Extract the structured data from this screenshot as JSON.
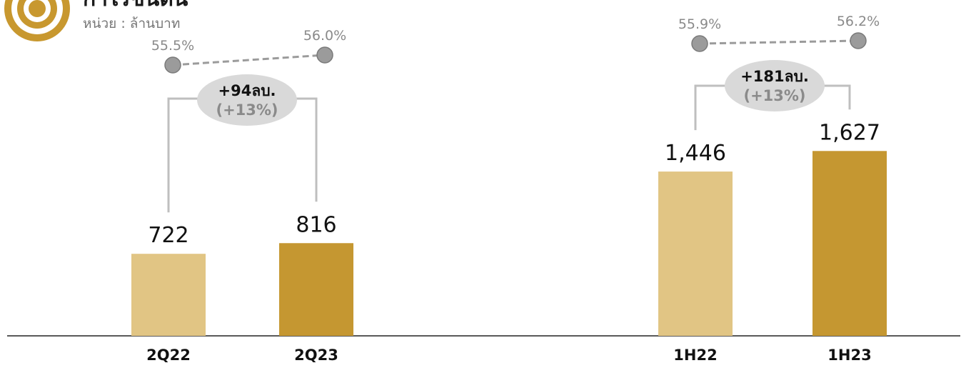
{
  "header": {
    "title": "กำไรขั้นต้น",
    "unit": "หน่วย : ล้านบาท"
  },
  "colors": {
    "prior": "#e1c584",
    "current": "#c59731",
    "margin_marker": "#9b9b9b",
    "bubble": "#d9d9d9",
    "bracket": "#bfbfbf",
    "logo": "#c8982f"
  },
  "chart_data": [
    {
      "type": "bar",
      "categories": [
        "2Q22",
        "2Q23"
      ],
      "values": [
        722,
        816
      ],
      "value_labels": [
        "722",
        "816"
      ],
      "margins": [
        55.5,
        56.0
      ],
      "margin_labels": [
        "55.5%",
        "56.0%"
      ],
      "delta": {
        "amount": "+94ลบ.",
        "percent": "(+13%)"
      },
      "grid": false
    },
    {
      "type": "bar",
      "categories": [
        "1H22",
        "1H23"
      ],
      "values": [
        1446,
        1627
      ],
      "value_labels": [
        "1,446",
        "1,627"
      ],
      "margins": [
        55.9,
        56.2
      ],
      "margin_labels": [
        "55.9%",
        "56.2%"
      ],
      "delta": {
        "amount": "+181ลบ.",
        "percent": "(+13%)"
      },
      "grid": false
    }
  ]
}
